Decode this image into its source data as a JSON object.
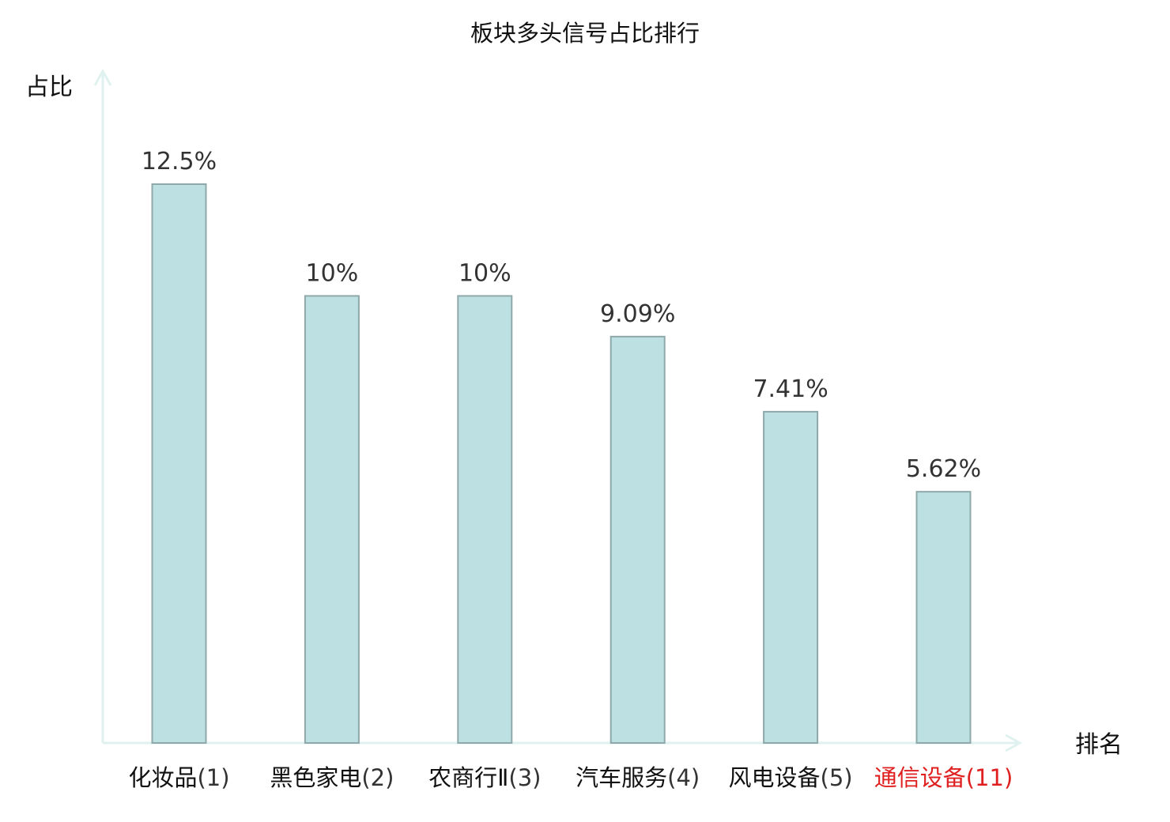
{
  "chart_data": {
    "type": "bar",
    "title": "板块多头信号占比排行",
    "ylabel": "占比",
    "xlabel": "排名",
    "categories": [
      {
        "name": "化妆品",
        "rank": "(1)",
        "highlight": false
      },
      {
        "name": "黑色家电",
        "rank": "(2)",
        "highlight": false
      },
      {
        "name": "农商行Ⅱ",
        "rank": "(3)",
        "highlight": false
      },
      {
        "name": "汽车服务",
        "rank": "(4)",
        "highlight": false
      },
      {
        "name": "风电设备",
        "rank": "(5)",
        "highlight": false
      },
      {
        "name": "通信设备",
        "rank": "(11)",
        "highlight": true
      }
    ],
    "values": [
      12.5,
      10,
      10,
      9.09,
      7.41,
      5.62
    ],
    "value_labels": [
      "12.5%",
      "10%",
      "10%",
      "9.09%",
      "7.41%",
      "5.62%"
    ],
    "ylim": [
      0,
      15
    ],
    "grid": false,
    "colors": {
      "bar_fill": "#bde0e3",
      "bar_stroke": "#8fa8aa",
      "axis": "#e0f2ef",
      "highlight_text": "#e02020",
      "normal_name_text": "#111111",
      "normal_rank_text": "#333333"
    }
  }
}
